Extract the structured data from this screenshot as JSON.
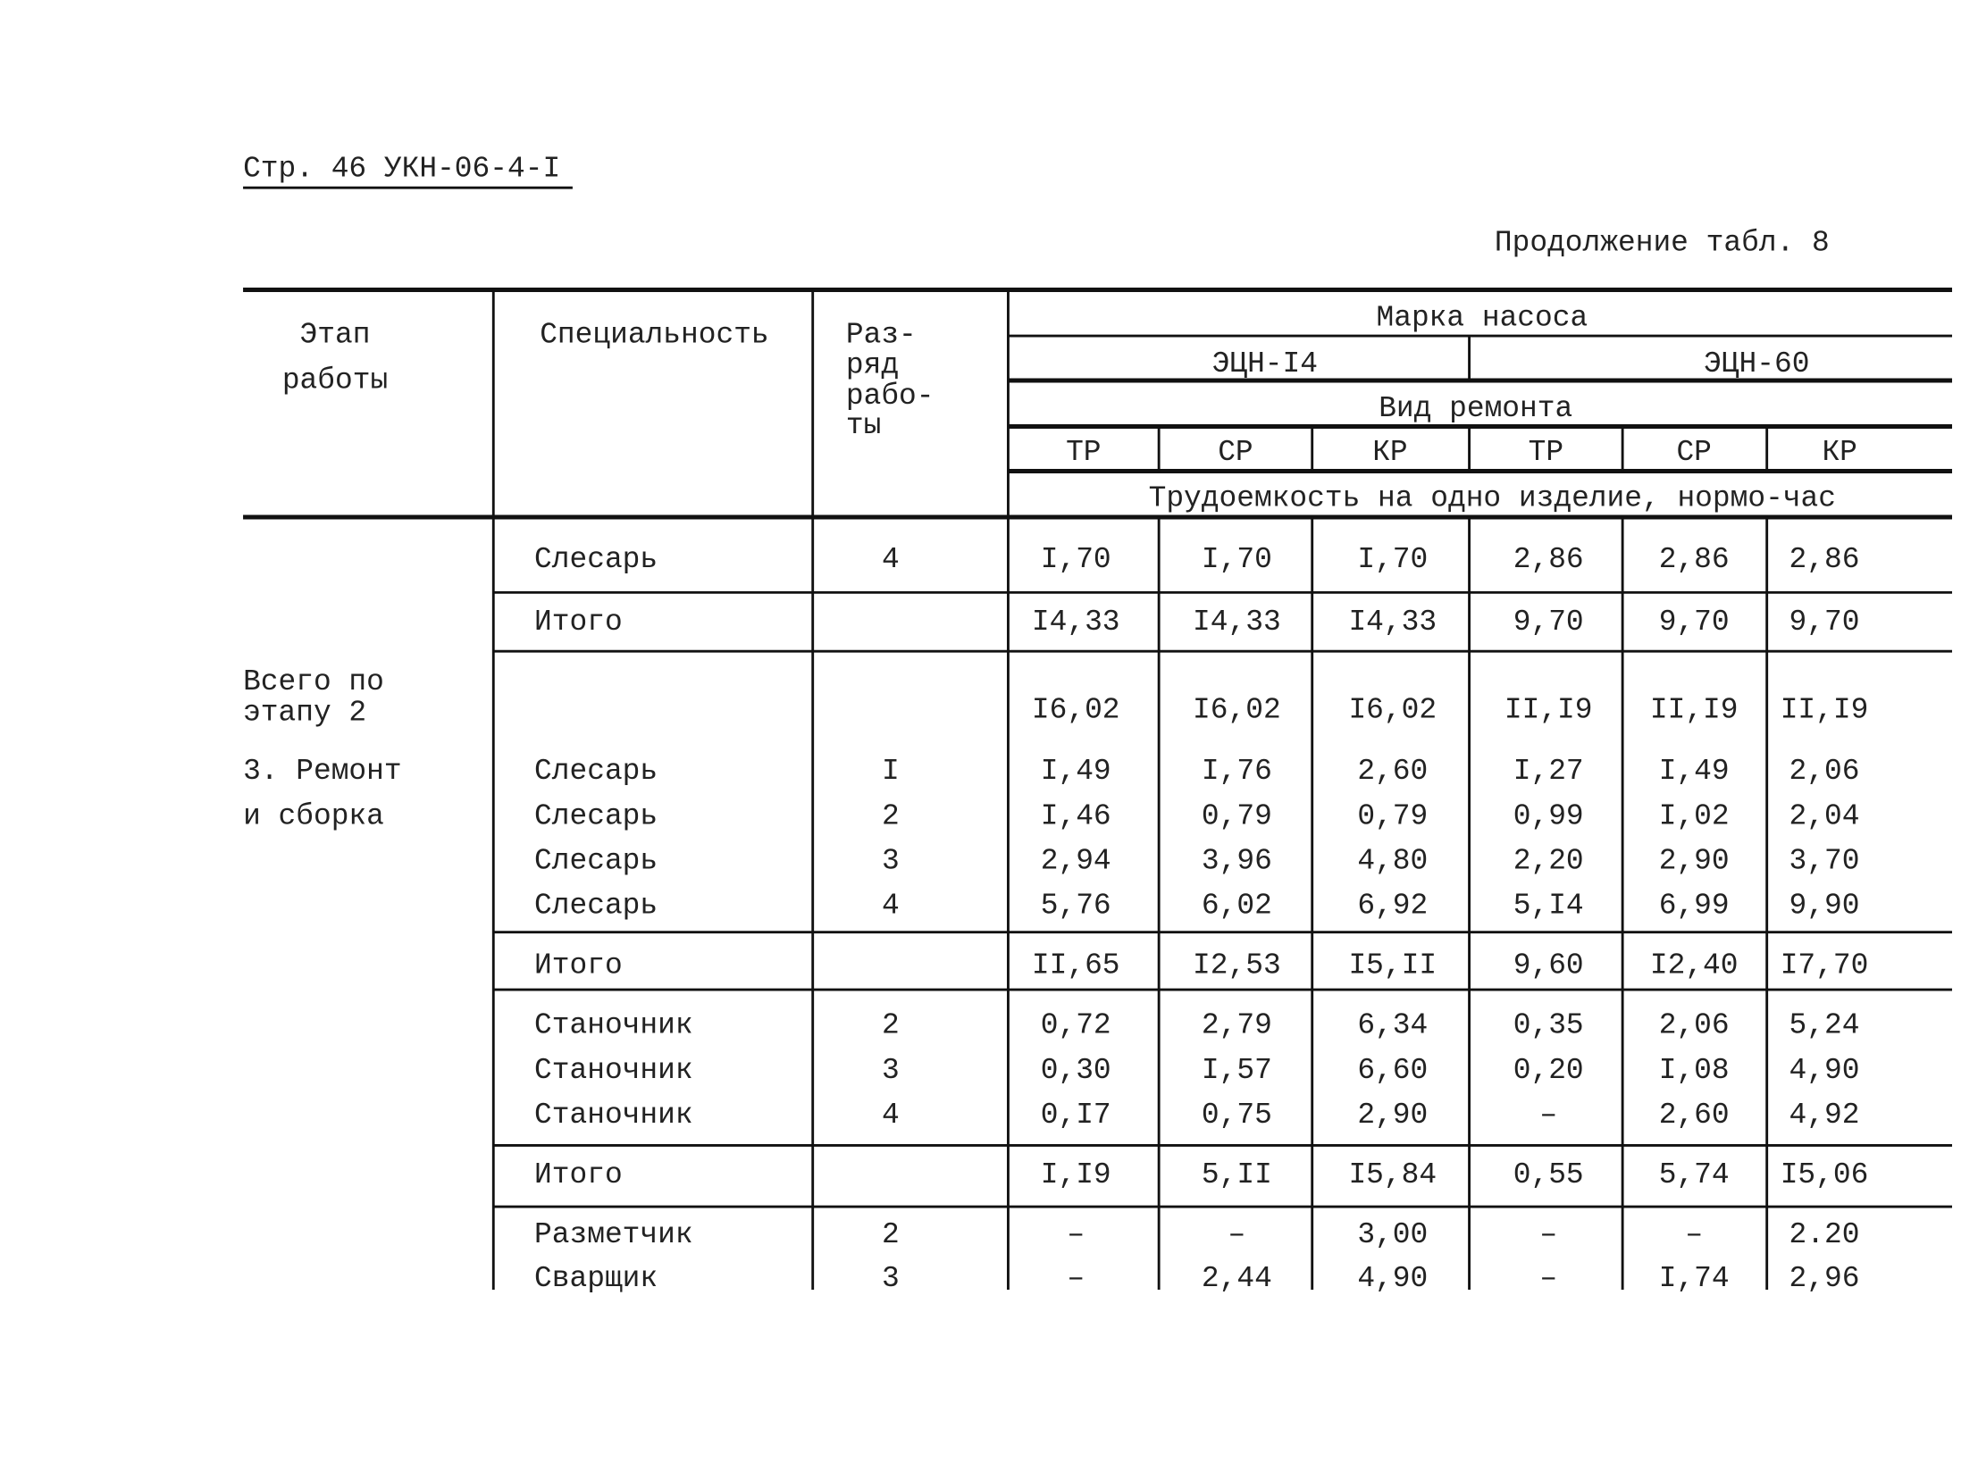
{
  "header": {
    "page_ref": "Стр. 46 УКН-06-4-I",
    "caption": "Продолжение табл. 8"
  },
  "table": {
    "columns": {
      "stage": [
        "Этап",
        "работы"
      ],
      "specialty": "Специальность",
      "grade": [
        "Раз-",
        "ряд",
        "рабо-",
        "ты"
      ],
      "pump_brand": "Марка насоса",
      "pumps": [
        "ЭЦН-I4",
        "ЭЦН-60"
      ],
      "repair_type": "Вид ремонта",
      "repairs": [
        "ТР",
        "СР",
        "КР",
        "ТР",
        "СР",
        "КР"
      ],
      "labor": "Трудоемкость на одно изделие, нормо-час"
    },
    "rows": [
      {
        "specialty": "Слесарь",
        "grade": "4",
        "values": [
          "I,70",
          "I,70",
          "I,70",
          "2,86",
          "2,86",
          "2,86"
        ]
      },
      {
        "specialty": "Итого",
        "values": [
          "I4,33",
          "I4,33",
          "I4,33",
          "9,70",
          "9,70",
          "9,70"
        ]
      },
      {
        "stage": [
          "Всего по",
          "этапу 2"
        ],
        "values": [
          "I6,02",
          "I6,02",
          "I6,02",
          "II,I9",
          "II,I9",
          "II,I9"
        ]
      },
      {
        "stage": [
          "3. Ремонт",
          "и сборка"
        ],
        "specialty": "Слесарь",
        "grade": "I",
        "values": [
          "I,49",
          "I,76",
          "2,60",
          "I,27",
          "I,49",
          "2,06"
        ]
      },
      {
        "specialty": "Слесарь",
        "grade": "2",
        "values": [
          "I,46",
          "0,79",
          "0,79",
          "0,99",
          "I,02",
          "2,04"
        ]
      },
      {
        "specialty": "Слесарь",
        "grade": "3",
        "values": [
          "2,94",
          "3,96",
          "4,80",
          "2,20",
          "2,90",
          "3,70"
        ]
      },
      {
        "specialty": "Слесарь",
        "grade": "4",
        "values": [
          "5,76",
          "6,02",
          "6,92",
          "5,I4",
          "6,99",
          "9,90"
        ]
      },
      {
        "specialty": "Итого",
        "values": [
          "II,65",
          "I2,53",
          "I5,II",
          "9,60",
          "I2,40",
          "I7,70"
        ]
      },
      {
        "specialty": "Станочник",
        "grade": "2",
        "values": [
          "0,72",
          "2,79",
          "6,34",
          "0,35",
          "2,06",
          "5,24"
        ]
      },
      {
        "specialty": "Станочник",
        "grade": "3",
        "values": [
          "0,30",
          "I,57",
          "6,60",
          "0,20",
          "I,08",
          "4,90"
        ]
      },
      {
        "specialty": "Станочник",
        "grade": "4",
        "values": [
          "0,I7",
          "0,75",
          "2,90",
          "–",
          "2,60",
          "4,92"
        ]
      },
      {
        "specialty": "Итого",
        "values": [
          "I,I9",
          "5,II",
          "I5,84",
          "0,55",
          "5,74",
          "I5,06"
        ]
      },
      {
        "specialty": "Разметчик",
        "grade": "2",
        "values": [
          "–",
          "–",
          "3,00",
          "–",
          "–",
          "2.20"
        ]
      },
      {
        "specialty": "Сварщик",
        "grade": "3",
        "values": [
          "–",
          "2,44",
          "4,90",
          "–",
          "I,74",
          "2,96"
        ]
      }
    ]
  }
}
